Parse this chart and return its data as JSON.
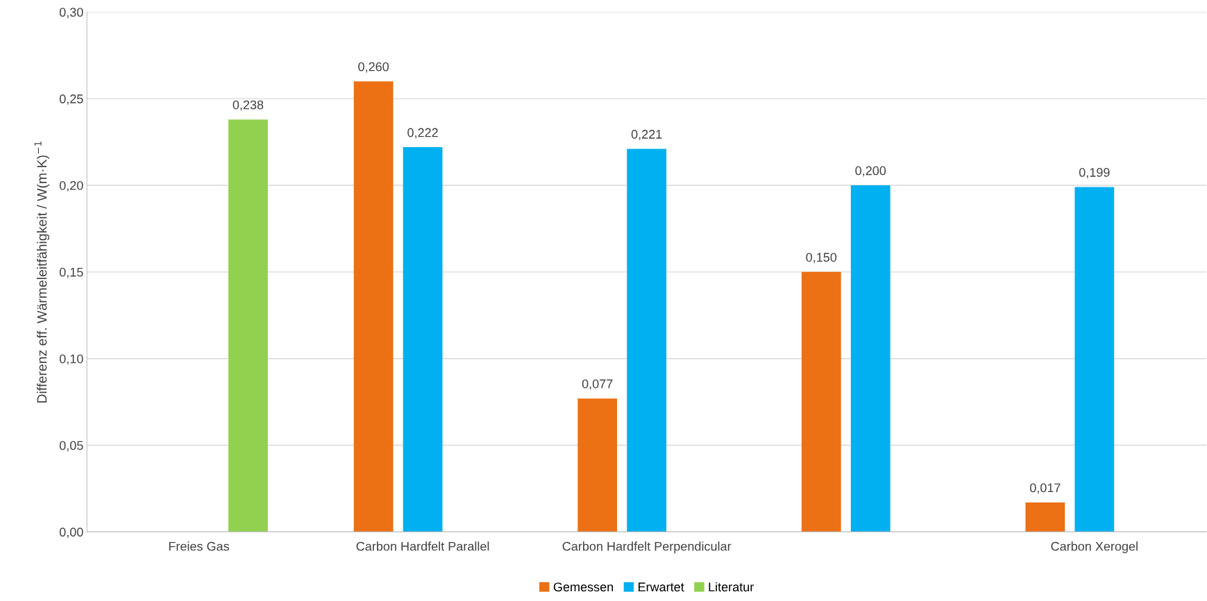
{
  "chart_data": {
    "type": "bar",
    "ylabel": "Differenz eff. Wärmeleitfähigkeit / W(m·K)$^{−1}$",
    "categories": [
      "Freies Gas",
      "Carbon Hardfelt Parallel",
      "Carbon Hardfelt Perpendicular",
      null,
      "Carbon Xerogel"
    ],
    "series": [
      {
        "name": "Gemessen",
        "color": "#ec7014",
        "values": [
          null,
          0.26,
          0.077,
          0.15,
          0.017
        ],
        "value_labels": [
          null,
          "0,260",
          "0,077",
          "0,150",
          "0,017"
        ]
      },
      {
        "name": "Erwartet",
        "color": "#00b0f0",
        "values": [
          null,
          0.222,
          0.221,
          0.2,
          0.199
        ],
        "value_labels": [
          null,
          "0,222",
          "0,221",
          "0,200",
          "0,199"
        ]
      },
      {
        "name": "Literatur",
        "color": "#92d050",
        "values": [
          0.238,
          null,
          null,
          null,
          null
        ],
        "value_labels": [
          "0,238",
          null,
          null,
          null,
          null
        ]
      }
    ],
    "ylim": [
      0,
      0.3
    ],
    "yticks": [
      {
        "value": 0,
        "label": "0,00"
      },
      {
        "value": 0.05,
        "label": "0,05"
      },
      {
        "value": 0.1,
        "label": "0,10"
      },
      {
        "value": 0.15,
        "label": "0,15"
      },
      {
        "value": 0.2,
        "label": "0,20"
      },
      {
        "value": 0.25,
        "label": "0,25"
      },
      {
        "value": 0.3,
        "label": "0,30"
      }
    ],
    "grid": "y",
    "legend": "bottom"
  }
}
